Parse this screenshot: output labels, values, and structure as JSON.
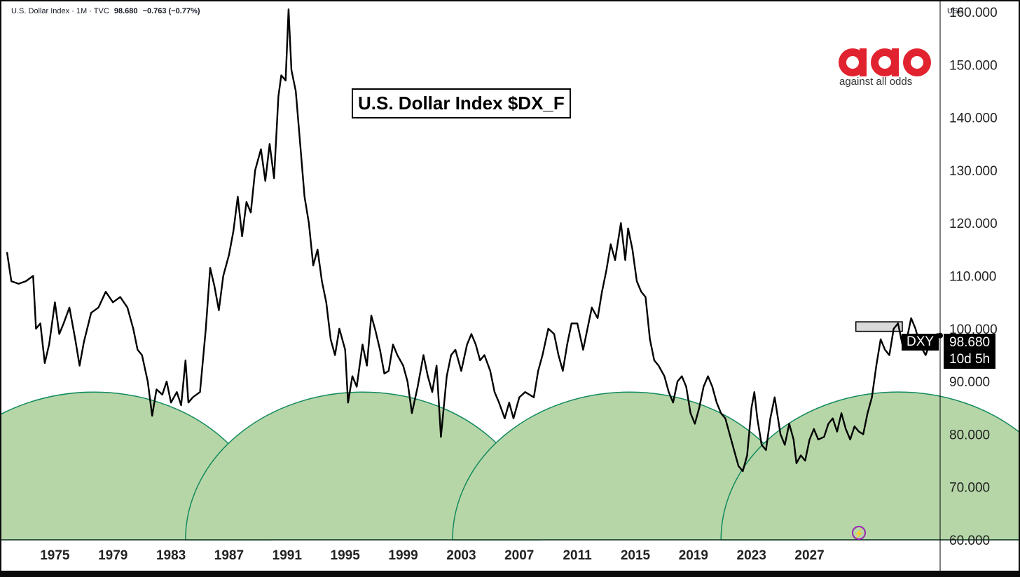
{
  "header": {
    "symbol_name": "U.S. Dollar Index · 1M · TVC",
    "last": "98.680",
    "change": "−0.763 (−0.77%)"
  },
  "currency_label": "USD",
  "logo": {
    "text": "against all odds"
  },
  "price_tag": {
    "symbol": "DXY",
    "price": "98.680",
    "countdown": "10d 5h"
  },
  "colors": {
    "line": "#000000",
    "semicircle_fill": "#b6d6a8",
    "semicircle_stroke": "#138a5e",
    "background": "#ffffff",
    "logo_red": "#e1232f"
  },
  "chart_data": {
    "type": "line",
    "title": "U.S. Dollar Index $DX_F",
    "xlabel": "",
    "ylabel": "",
    "xlim": [
      1971.7,
      2036.0
    ],
    "ylim": [
      60,
      162
    ],
    "x_ticks": [
      "1975",
      "1979",
      "1983",
      "1987",
      "1991",
      "1995",
      "1999",
      "2003",
      "2007",
      "2011",
      "2015",
      "2019",
      "2023",
      "2027"
    ],
    "y_ticks": [
      "60.000",
      "70.000",
      "80.000",
      "90.000",
      "100.000",
      "110.000",
      "120.000",
      "130.000",
      "140.000",
      "150.000",
      "160.000"
    ],
    "series": [
      {
        "name": "DXY",
        "points": [
          [
            1971.7,
            114.5
          ],
          [
            1972.0,
            109
          ],
          [
            1972.5,
            108.5
          ],
          [
            1973.0,
            109
          ],
          [
            1973.5,
            110
          ],
          [
            1973.7,
            100
          ],
          [
            1974.0,
            101
          ],
          [
            1974.3,
            93.5
          ],
          [
            1974.6,
            97
          ],
          [
            1975.0,
            105
          ],
          [
            1975.3,
            99
          ],
          [
            1975.6,
            101
          ],
          [
            1976.0,
            104
          ],
          [
            1976.4,
            98
          ],
          [
            1976.7,
            93
          ],
          [
            1977.0,
            97.5
          ],
          [
            1977.5,
            103
          ],
          [
            1978.0,
            104
          ],
          [
            1978.5,
            107
          ],
          [
            1979.0,
            105
          ],
          [
            1979.5,
            106
          ],
          [
            1980.0,
            104
          ],
          [
            1980.4,
            100
          ],
          [
            1980.7,
            96
          ],
          [
            1981.0,
            95
          ],
          [
            1981.4,
            90
          ],
          [
            1981.7,
            83.5
          ],
          [
            1982.0,
            88.5
          ],
          [
            1982.4,
            87.5
          ],
          [
            1982.7,
            90
          ],
          [
            1983.0,
            86
          ],
          [
            1983.4,
            88
          ],
          [
            1983.7,
            85.5
          ],
          [
            1984.0,
            94
          ],
          [
            1984.2,
            86
          ],
          [
            1984.5,
            87
          ],
          [
            1985.0,
            88
          ],
          [
            1985.4,
            100
          ],
          [
            1985.7,
            111.5
          ],
          [
            1986.0,
            108
          ],
          [
            1986.3,
            103.5
          ],
          [
            1986.6,
            110
          ],
          [
            1987.0,
            114
          ],
          [
            1987.3,
            118.5
          ],
          [
            1987.6,
            125
          ],
          [
            1987.9,
            117.5
          ],
          [
            1988.2,
            124
          ],
          [
            1988.5,
            122
          ],
          [
            1988.8,
            130
          ],
          [
            1989.2,
            134
          ],
          [
            1989.5,
            128
          ],
          [
            1989.8,
            135
          ],
          [
            1990.1,
            128.5
          ],
          [
            1990.4,
            144
          ],
          [
            1990.6,
            148
          ],
          [
            1990.9,
            147
          ],
          [
            1991.1,
            160.5
          ],
          [
            1991.3,
            149
          ],
          [
            1991.6,
            145
          ],
          [
            1991.9,
            135
          ],
          [
            1992.2,
            125
          ],
          [
            1992.5,
            120
          ],
          [
            1992.8,
            112
          ],
          [
            1993.1,
            115
          ],
          [
            1993.4,
            109
          ],
          [
            1993.7,
            105
          ],
          [
            1994.0,
            98
          ],
          [
            1994.3,
            95
          ],
          [
            1994.6,
            100
          ],
          [
            1995.0,
            96
          ],
          [
            1995.2,
            86
          ],
          [
            1995.5,
            91
          ],
          [
            1995.8,
            89
          ],
          [
            1996.2,
            97
          ],
          [
            1996.5,
            93
          ],
          [
            1996.8,
            102.5
          ],
          [
            1997.1,
            99.5
          ],
          [
            1997.4,
            96
          ],
          [
            1997.7,
            91.5
          ],
          [
            1998.0,
            92
          ],
          [
            1998.3,
            97
          ],
          [
            1998.6,
            95
          ],
          [
            1999.0,
            93
          ],
          [
            1999.3,
            90
          ],
          [
            1999.6,
            84
          ],
          [
            2000.0,
            89
          ],
          [
            2000.4,
            95
          ],
          [
            2000.7,
            91
          ],
          [
            2001.0,
            88
          ],
          [
            2001.3,
            93
          ],
          [
            2001.6,
            79.5
          ],
          [
            2002.0,
            91
          ],
          [
            2002.3,
            95
          ],
          [
            2002.6,
            96
          ],
          [
            2003.0,
            92
          ],
          [
            2003.4,
            97
          ],
          [
            2003.7,
            99
          ],
          [
            2004.0,
            97
          ],
          [
            2004.3,
            94
          ],
          [
            2004.6,
            95
          ],
          [
            2005.0,
            92
          ],
          [
            2005.3,
            88
          ],
          [
            2005.6,
            86
          ],
          [
            2006.0,
            83
          ],
          [
            2006.3,
            86
          ],
          [
            2006.6,
            83
          ],
          [
            2007.0,
            87
          ],
          [
            2007.4,
            88
          ],
          [
            2007.7,
            87.5
          ],
          [
            2008.0,
            87
          ],
          [
            2008.3,
            92
          ],
          [
            2008.6,
            95
          ],
          [
            2009.0,
            100
          ],
          [
            2009.4,
            99
          ],
          [
            2009.7,
            95
          ],
          [
            2010.0,
            92
          ],
          [
            2010.3,
            97
          ],
          [
            2010.6,
            101
          ],
          [
            2011.0,
            101
          ],
          [
            2011.4,
            96
          ],
          [
            2011.7,
            100
          ],
          [
            2012.0,
            104
          ],
          [
            2012.4,
            102
          ],
          [
            2012.7,
            107
          ],
          [
            2013.0,
            111
          ],
          [
            2013.3,
            116
          ],
          [
            2013.6,
            113
          ],
          [
            2014.0,
            120
          ],
          [
            2014.3,
            113
          ],
          [
            2014.5,
            119
          ],
          [
            2014.8,
            115
          ],
          [
            2015.1,
            109
          ],
          [
            2015.4,
            107
          ],
          [
            2015.7,
            106
          ],
          [
            2016.0,
            98
          ],
          [
            2016.3,
            94
          ],
          [
            2016.6,
            93
          ],
          [
            2017.0,
            91
          ],
          [
            2017.3,
            88
          ],
          [
            2017.6,
            86
          ],
          [
            2017.9,
            90
          ],
          [
            2018.2,
            91
          ],
          [
            2018.5,
            89
          ],
          [
            2018.8,
            84
          ],
          [
            2019.1,
            82
          ],
          [
            2019.4,
            85
          ],
          [
            2019.7,
            89
          ],
          [
            2020.0,
            91
          ],
          [
            2020.3,
            89
          ],
          [
            2020.6,
            86
          ],
          [
            2020.9,
            84
          ],
          [
            2021.2,
            83
          ],
          [
            2021.5,
            80
          ],
          [
            2021.8,
            77
          ],
          [
            2022.1,
            74
          ],
          [
            2022.4,
            73
          ],
          [
            2022.7,
            76
          ],
          [
            2023.0,
            85
          ],
          [
            2023.2,
            88
          ],
          [
            2023.4,
            83
          ],
          [
            2023.7,
            78
          ],
          [
            2024.0,
            77
          ],
          [
            2024.3,
            83
          ],
          [
            2024.6,
            87
          ],
          [
            2025.0,
            80
          ],
          [
            2025.3,
            78
          ],
          [
            2025.6,
            82
          ],
          [
            2025.9,
            79
          ],
          [
            2026.1,
            74.5
          ],
          [
            2026.4,
            76
          ],
          [
            2026.7,
            75
          ],
          [
            2027.0,
            79
          ],
          [
            2027.3,
            81
          ],
          [
            2027.6,
            79
          ],
          [
            2028.0,
            79.5
          ],
          [
            2028.3,
            82
          ],
          [
            2028.6,
            83
          ],
          [
            2028.9,
            80.5
          ],
          [
            2029.2,
            84
          ],
          [
            2029.5,
            81
          ],
          [
            2029.8,
            79
          ],
          [
            2030.1,
            81.5
          ],
          [
            2030.4,
            80.5
          ],
          [
            2030.7,
            80
          ],
          [
            2031.0,
            84
          ],
          [
            2031.3,
            87
          ],
          [
            2031.6,
            93
          ],
          [
            2031.9,
            98
          ],
          [
            2032.2,
            96
          ],
          [
            2032.5,
            95
          ],
          [
            2032.8,
            100
          ],
          [
            2033.1,
            101
          ],
          [
            2033.4,
            97
          ],
          [
            2033.7,
            98
          ],
          [
            2034.0,
            102
          ],
          [
            2034.3,
            100
          ],
          [
            2034.6,
            97
          ],
          [
            2035.0,
            95
          ],
          [
            2035.4,
            98
          ],
          [
            2035.8,
            99
          ],
          [
            2036.0,
            98.7
          ]
        ]
      }
    ],
    "semicircle_centers": [
      "1977.7",
      "1996.2",
      "2014.6",
      "2033.1"
    ],
    "support_band": [
      99.5,
      101.3
    ],
    "last_price": 98.68,
    "grid": false,
    "legend": "none"
  }
}
